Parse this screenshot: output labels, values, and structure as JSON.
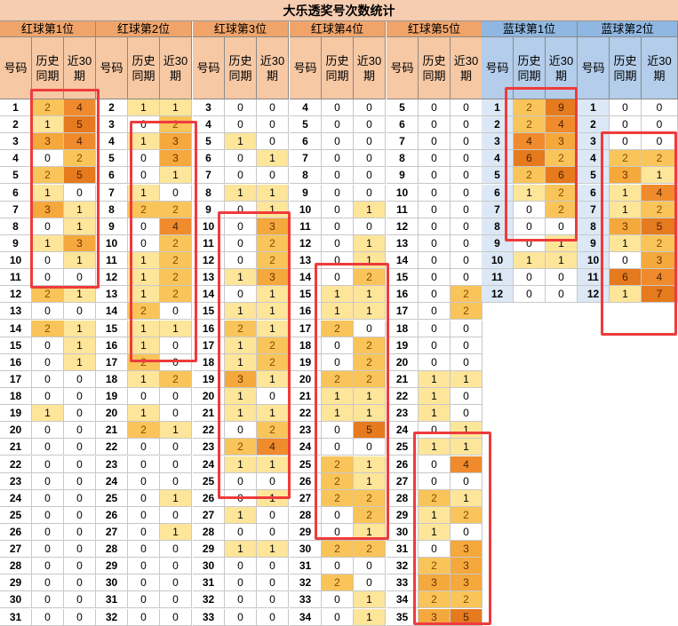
{
  "title": "大乐透奖号次数统计",
  "sub_headers": {
    "number": "号码",
    "hist": "历史\n同期",
    "recent": "近30\n期"
  },
  "groups": [
    {
      "name": "红球第1位",
      "type": "red",
      "rows": [
        [
          1,
          2,
          4
        ],
        [
          2,
          1,
          5
        ],
        [
          3,
          3,
          4
        ],
        [
          4,
          0,
          2
        ],
        [
          5,
          2,
          5
        ],
        [
          6,
          1,
          0
        ],
        [
          7,
          3,
          1
        ],
        [
          8,
          0,
          1
        ],
        [
          9,
          1,
          3
        ],
        [
          10,
          0,
          1
        ],
        [
          11,
          0,
          0
        ],
        [
          12,
          2,
          1
        ],
        [
          13,
          0,
          0
        ],
        [
          14,
          2,
          1
        ],
        [
          15,
          0,
          1
        ],
        [
          16,
          0,
          1
        ],
        [
          17,
          0,
          0
        ],
        [
          18,
          0,
          0
        ],
        [
          19,
          1,
          0
        ],
        [
          20,
          0,
          0
        ],
        [
          21,
          0,
          0
        ],
        [
          22,
          0,
          0
        ],
        [
          23,
          0,
          0
        ],
        [
          24,
          0,
          0
        ],
        [
          25,
          0,
          0
        ],
        [
          26,
          0,
          0
        ],
        [
          27,
          0,
          0
        ],
        [
          28,
          0,
          0
        ],
        [
          29,
          0,
          0
        ],
        [
          30,
          0,
          0
        ],
        [
          31,
          0,
          0
        ]
      ]
    },
    {
      "name": "红球第2位",
      "type": "red",
      "rows": [
        [
          2,
          1,
          1
        ],
        [
          3,
          0,
          2
        ],
        [
          4,
          1,
          3
        ],
        [
          5,
          0,
          3
        ],
        [
          6,
          0,
          1
        ],
        [
          7,
          1,
          0
        ],
        [
          8,
          2,
          2
        ],
        [
          9,
          0,
          4
        ],
        [
          10,
          0,
          2
        ],
        [
          11,
          1,
          2
        ],
        [
          12,
          1,
          2
        ],
        [
          13,
          1,
          2
        ],
        [
          14,
          2,
          0
        ],
        [
          15,
          1,
          1
        ],
        [
          16,
          1,
          0
        ],
        [
          17,
          2,
          0
        ],
        [
          18,
          1,
          2
        ],
        [
          19,
          0,
          0
        ],
        [
          20,
          1,
          0
        ],
        [
          21,
          2,
          1
        ],
        [
          22,
          0,
          0
        ],
        [
          23,
          0,
          0
        ],
        [
          24,
          0,
          0
        ],
        [
          25,
          0,
          1
        ],
        [
          26,
          0,
          0
        ],
        [
          27,
          0,
          1
        ],
        [
          28,
          0,
          0
        ],
        [
          29,
          0,
          0
        ],
        [
          30,
          0,
          0
        ],
        [
          31,
          0,
          0
        ],
        [
          32,
          0,
          0
        ]
      ]
    },
    {
      "name": "红球第3位",
      "type": "red",
      "rows": [
        [
          3,
          0,
          0
        ],
        [
          4,
          0,
          0
        ],
        [
          5,
          1,
          0
        ],
        [
          6,
          0,
          1
        ],
        [
          7,
          0,
          0
        ],
        [
          8,
          1,
          1
        ],
        [
          9,
          0,
          1
        ],
        [
          10,
          0,
          3
        ],
        [
          11,
          0,
          2
        ],
        [
          12,
          0,
          2
        ],
        [
          13,
          1,
          3
        ],
        [
          14,
          0,
          1
        ],
        [
          15,
          1,
          1
        ],
        [
          16,
          2,
          1
        ],
        [
          17,
          1,
          2
        ],
        [
          18,
          1,
          2
        ],
        [
          19,
          3,
          1
        ],
        [
          20,
          1,
          0
        ],
        [
          21,
          1,
          1
        ],
        [
          22,
          0,
          2
        ],
        [
          23,
          2,
          4
        ],
        [
          24,
          1,
          1
        ],
        [
          25,
          0,
          0
        ],
        [
          26,
          0,
          1
        ],
        [
          27,
          1,
          0
        ],
        [
          28,
          0,
          0
        ],
        [
          29,
          1,
          1
        ],
        [
          30,
          0,
          0
        ],
        [
          31,
          0,
          0
        ],
        [
          32,
          0,
          0
        ],
        [
          33,
          0,
          0
        ]
      ]
    },
    {
      "name": "红球第4位",
      "type": "red",
      "rows": [
        [
          4,
          0,
          0
        ],
        [
          5,
          0,
          0
        ],
        [
          6,
          0,
          0
        ],
        [
          7,
          0,
          0
        ],
        [
          8,
          0,
          0
        ],
        [
          9,
          0,
          0
        ],
        [
          10,
          0,
          1
        ],
        [
          11,
          0,
          0
        ],
        [
          12,
          0,
          1
        ],
        [
          13,
          0,
          1
        ],
        [
          14,
          0,
          2
        ],
        [
          15,
          1,
          1
        ],
        [
          16,
          1,
          1
        ],
        [
          17,
          2,
          0
        ],
        [
          18,
          0,
          2
        ],
        [
          19,
          0,
          2
        ],
        [
          20,
          2,
          2
        ],
        [
          21,
          1,
          1
        ],
        [
          22,
          1,
          1
        ],
        [
          23,
          0,
          5
        ],
        [
          24,
          0,
          0
        ],
        [
          25,
          2,
          1
        ],
        [
          26,
          2,
          1
        ],
        [
          27,
          2,
          2
        ],
        [
          28,
          0,
          2
        ],
        [
          29,
          0,
          1
        ],
        [
          30,
          2,
          2
        ],
        [
          31,
          0,
          0
        ],
        [
          32,
          2,
          0
        ],
        [
          33,
          0,
          1
        ],
        [
          34,
          0,
          1
        ]
      ]
    },
    {
      "name": "红球第5位",
      "type": "red",
      "rows": [
        [
          5,
          0,
          0
        ],
        [
          6,
          0,
          0
        ],
        [
          7,
          0,
          0
        ],
        [
          8,
          0,
          0
        ],
        [
          9,
          0,
          0
        ],
        [
          10,
          0,
          0
        ],
        [
          11,
          0,
          0
        ],
        [
          12,
          0,
          0
        ],
        [
          13,
          0,
          0
        ],
        [
          14,
          0,
          0
        ],
        [
          15,
          0,
          0
        ],
        [
          16,
          0,
          2
        ],
        [
          17,
          0,
          2
        ],
        [
          18,
          0,
          0
        ],
        [
          19,
          0,
          0
        ],
        [
          20,
          0,
          0
        ],
        [
          21,
          1,
          1
        ],
        [
          22,
          1,
          0
        ],
        [
          23,
          1,
          0
        ],
        [
          24,
          0,
          1
        ],
        [
          25,
          1,
          1
        ],
        [
          26,
          0,
          4
        ],
        [
          27,
          0,
          0
        ],
        [
          28,
          2,
          1
        ],
        [
          29,
          1,
          2
        ],
        [
          30,
          1,
          0
        ],
        [
          31,
          0,
          3
        ],
        [
          32,
          2,
          3
        ],
        [
          33,
          3,
          3
        ],
        [
          34,
          2,
          2
        ],
        [
          35,
          3,
          5
        ]
      ]
    },
    {
      "name": "蓝球第1位",
      "type": "blue",
      "rows": [
        [
          1,
          2,
          9
        ],
        [
          2,
          2,
          4
        ],
        [
          3,
          4,
          3
        ],
        [
          4,
          6,
          2
        ],
        [
          5,
          2,
          6
        ],
        [
          6,
          1,
          2
        ],
        [
          7,
          0,
          2
        ],
        [
          8,
          0,
          0
        ],
        [
          9,
          0,
          1
        ],
        [
          10,
          1,
          1
        ],
        [
          11,
          0,
          0
        ],
        [
          12,
          0,
          0
        ]
      ]
    },
    {
      "name": "蓝球第2位",
      "type": "blue",
      "rows": [
        [
          1,
          0,
          0
        ],
        [
          2,
          0,
          0
        ],
        [
          3,
          0,
          0
        ],
        [
          4,
          2,
          2
        ],
        [
          5,
          3,
          1
        ],
        [
          6,
          1,
          4
        ],
        [
          7,
          1,
          2
        ],
        [
          8,
          3,
          5
        ],
        [
          9,
          1,
          2
        ],
        [
          10,
          0,
          3
        ],
        [
          11,
          6,
          4
        ],
        [
          12,
          1,
          7
        ]
      ]
    }
  ],
  "highlights": [
    "red1-rows-1-10",
    "red2-rows-3-15",
    "red3-rows-9-24",
    "red4-rows-13-28",
    "red5-rows-23-35",
    "blue1-rows-1-8",
    "blue2-rows-3-12"
  ]
}
